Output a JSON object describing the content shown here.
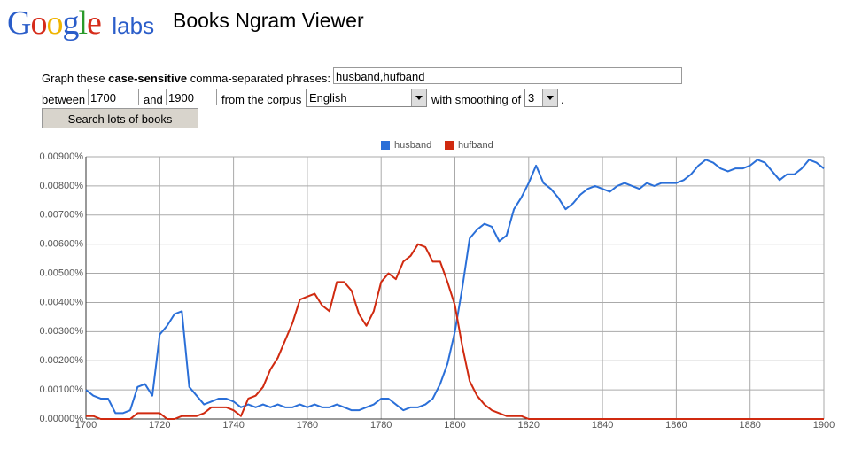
{
  "logo": {
    "letters": [
      "G",
      "o",
      "o",
      "g",
      "l",
      "e"
    ],
    "labs": "labs"
  },
  "app_title": "Books Ngram Viewer",
  "form": {
    "graph_prefix": "Graph these",
    "graph_bold": "case-sensitive",
    "graph_suffix": "comma-separated phrases:",
    "phrases": "husband,hufband",
    "between": "between",
    "start_year": "1700",
    "and": "and",
    "end_year": "1900",
    "corpus_label": "from the corpus",
    "corpus": "English",
    "smoothing_label": "with smoothing of",
    "smoothing": "3",
    "period": ".",
    "button": "Search lots of books"
  },
  "chart_data": {
    "type": "line",
    "x": [
      1700,
      1702,
      1704,
      1706,
      1708,
      1710,
      1712,
      1714,
      1716,
      1718,
      1720,
      1722,
      1724,
      1726,
      1728,
      1730,
      1732,
      1734,
      1736,
      1738,
      1740,
      1742,
      1744,
      1746,
      1748,
      1750,
      1752,
      1754,
      1756,
      1758,
      1760,
      1762,
      1764,
      1766,
      1768,
      1770,
      1772,
      1774,
      1776,
      1778,
      1780,
      1782,
      1784,
      1786,
      1788,
      1790,
      1792,
      1794,
      1796,
      1798,
      1800,
      1802,
      1804,
      1806,
      1808,
      1810,
      1812,
      1814,
      1816,
      1818,
      1820,
      1822,
      1824,
      1826,
      1828,
      1830,
      1832,
      1834,
      1836,
      1838,
      1840,
      1842,
      1844,
      1846,
      1848,
      1850,
      1852,
      1854,
      1856,
      1858,
      1860,
      1862,
      1864,
      1866,
      1868,
      1870,
      1872,
      1874,
      1876,
      1878,
      1880,
      1882,
      1884,
      1886,
      1888,
      1890,
      1892,
      1894,
      1896,
      1898,
      1900
    ],
    "series": [
      {
        "name": "husband",
        "color": "#2a6fd8",
        "values": [
          0.001,
          0.0008,
          0.0007,
          0.0007,
          0.0002,
          0.0002,
          0.0003,
          0.0011,
          0.0012,
          0.0008,
          0.0029,
          0.0032,
          0.0036,
          0.0037,
          0.0011,
          0.0008,
          0.0005,
          0.0006,
          0.0007,
          0.0007,
          0.0006,
          0.0004,
          0.0005,
          0.0004,
          0.0005,
          0.0004,
          0.0005,
          0.0004,
          0.0004,
          0.0005,
          0.0004,
          0.0005,
          0.0004,
          0.0004,
          0.0005,
          0.0004,
          0.0003,
          0.0003,
          0.0004,
          0.0005,
          0.0007,
          0.0007,
          0.0005,
          0.0003,
          0.0004,
          0.0004,
          0.0005,
          0.0007,
          0.0012,
          0.0019,
          0.003,
          0.0045,
          0.0062,
          0.0065,
          0.0067,
          0.0066,
          0.0061,
          0.0063,
          0.0072,
          0.0076,
          0.0081,
          0.0087,
          0.0081,
          0.0079,
          0.0076,
          0.0072,
          0.0074,
          0.0077,
          0.0079,
          0.008,
          0.0079,
          0.0078,
          0.008,
          0.0081,
          0.008,
          0.0079,
          0.0081,
          0.008,
          0.0081,
          0.0081,
          0.0081,
          0.0082,
          0.0084,
          0.0087,
          0.0089,
          0.0088,
          0.0086,
          0.0085,
          0.0086,
          0.0086,
          0.0087,
          0.0089,
          0.0088,
          0.0085,
          0.0082,
          0.0084,
          0.0084,
          0.0086,
          0.0089,
          0.0088,
          0.0086
        ]
      },
      {
        "name": "hufband",
        "color": "#d02a10",
        "values": [
          0.0001,
          0.0001,
          0,
          0,
          0,
          0,
          0,
          0.0002,
          0.0002,
          0.0002,
          0.0002,
          0,
          0,
          0.0001,
          0.0001,
          0.0001,
          0.0002,
          0.0004,
          0.0004,
          0.0004,
          0.0003,
          0.0001,
          0.0007,
          0.0008,
          0.0011,
          0.0017,
          0.0021,
          0.0027,
          0.0033,
          0.0041,
          0.0042,
          0.0043,
          0.0039,
          0.0037,
          0.0047,
          0.0047,
          0.0044,
          0.0036,
          0.0032,
          0.0037,
          0.0047,
          0.005,
          0.0048,
          0.0054,
          0.0056,
          0.006,
          0.0059,
          0.0054,
          0.0054,
          0.0047,
          0.0039,
          0.0025,
          0.0013,
          0.0008,
          0.0005,
          0.0003,
          0.0002,
          0.0001,
          0.0001,
          0.0001,
          0,
          0,
          0,
          0,
          0,
          0,
          0,
          0,
          0,
          0,
          0,
          0,
          0,
          0,
          0,
          0,
          0,
          0,
          0,
          0,
          0,
          0,
          0,
          0,
          0,
          0,
          0,
          0,
          0,
          0,
          0,
          0,
          0,
          0,
          0,
          0,
          0,
          0,
          0,
          0,
          0
        ]
      }
    ],
    "xlim": [
      1700,
      1900
    ],
    "xticks": [
      1700,
      1720,
      1740,
      1760,
      1780,
      1800,
      1820,
      1840,
      1860,
      1880,
      1900
    ],
    "ylim": [
      0,
      0.009
    ],
    "yticks": [
      {
        "value": 0,
        "label": "0.00000%"
      },
      {
        "value": 0.001,
        "label": "0.00100%"
      },
      {
        "value": 0.002,
        "label": "0.00200%"
      },
      {
        "value": 0.003,
        "label": "0.00300%"
      },
      {
        "value": 0.004,
        "label": "0.00400%"
      },
      {
        "value": 0.005,
        "label": "0.00500%"
      },
      {
        "value": 0.006,
        "label": "0.00600%"
      },
      {
        "value": 0.007,
        "label": "0.00700%"
      },
      {
        "value": 0.008,
        "label": "0.00800%"
      },
      {
        "value": 0.009,
        "label": "0.00900%"
      }
    ],
    "grid": true,
    "legend": "top"
  }
}
